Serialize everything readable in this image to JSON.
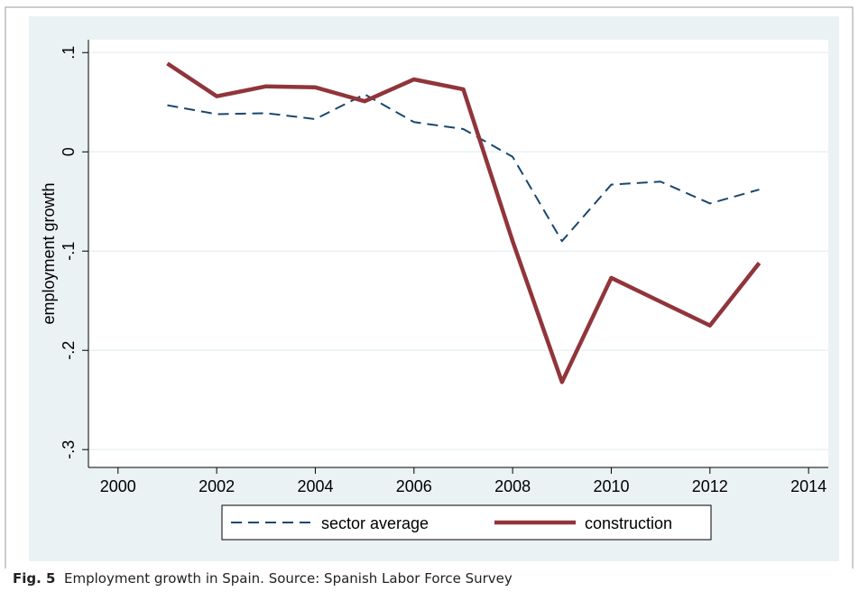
{
  "chart_data": {
    "type": "line",
    "ylabel": "employment growth",
    "x": [
      2001,
      2002,
      2003,
      2004,
      2005,
      2006,
      2007,
      2008,
      2009,
      2010,
      2011,
      2012,
      2013
    ],
    "series": [
      {
        "name": "sector average",
        "color": "#1a476f",
        "dash": true,
        "values": [
          0.047,
          0.038,
          0.039,
          0.033,
          0.058,
          0.03,
          0.023,
          -0.005,
          -0.09,
          -0.033,
          -0.03,
          -0.052,
          -0.038
        ]
      },
      {
        "name": "construction",
        "color": "#90353b",
        "dash": false,
        "values": [
          0.089,
          0.056,
          0.066,
          0.065,
          0.051,
          0.073,
          0.063,
          -0.09,
          -0.232,
          -0.127,
          -0.151,
          -0.175,
          -0.112
        ]
      }
    ],
    "xlim": [
      1999.4,
      2014.4
    ],
    "xticks": [
      2000,
      2002,
      2004,
      2006,
      2008,
      2010,
      2012,
      2014
    ],
    "ylim": [
      -0.318,
      0.113
    ],
    "yticks": [
      {
        "value": 0.1,
        "label": ".1"
      },
      0,
      {
        "value": -0.1,
        "label": "-.1"
      },
      {
        "value": -0.2,
        "label": "-.2"
      },
      {
        "value": -0.3,
        "label": "-.3"
      }
    ],
    "grid": true,
    "legend": "bottom"
  },
  "caption": {
    "label": "Fig. 5",
    "text": "Employment growth in Spain. Source: Spanish Labor Force Survey"
  }
}
